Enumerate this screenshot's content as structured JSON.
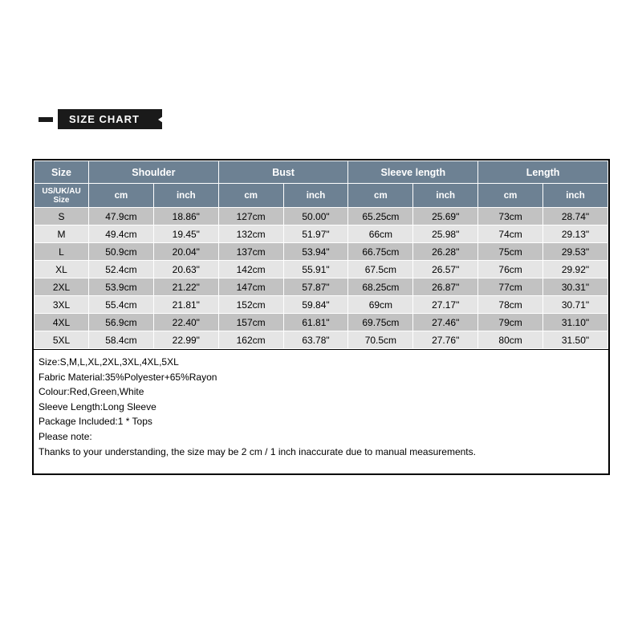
{
  "banner": {
    "label": "SIZE CHART"
  },
  "table": {
    "type": "table",
    "header_bg": "#6d8193",
    "header_fg": "#ffffff",
    "row_even_bg": "#c2c2c2",
    "row_odd_bg": "#e5e5e5",
    "border_color": "#ffffff",
    "outer_border": "#000000",
    "col_widths_pct": [
      9.5,
      11.3,
      11.3,
      11.3,
      11.3,
      11.3,
      11.3,
      11.3,
      11.3
    ],
    "top_headers": {
      "size": "Size",
      "shoulder": "Shoulder",
      "bust": "Bust",
      "sleeve": "Sleeve length",
      "length": "Length"
    },
    "sub_headers": {
      "size_sub": "US/UK/AU\nSize",
      "cm": "cm",
      "inch": "inch"
    },
    "rows": [
      {
        "size": "S",
        "shoulder_cm": "47.9cm",
        "shoulder_in": "18.86\"",
        "bust_cm": "127cm",
        "bust_in": "50.00\"",
        "sleeve_cm": "65.25cm",
        "sleeve_in": "25.69\"",
        "length_cm": "73cm",
        "length_in": "28.74\""
      },
      {
        "size": "M",
        "shoulder_cm": "49.4cm",
        "shoulder_in": "19.45\"",
        "bust_cm": "132cm",
        "bust_in": "51.97\"",
        "sleeve_cm": "66cm",
        "sleeve_in": "25.98\"",
        "length_cm": "74cm",
        "length_in": "29.13\""
      },
      {
        "size": "L",
        "shoulder_cm": "50.9cm",
        "shoulder_in": "20.04\"",
        "bust_cm": "137cm",
        "bust_in": "53.94\"",
        "sleeve_cm": "66.75cm",
        "sleeve_in": "26.28\"",
        "length_cm": "75cm",
        "length_in": "29.53\""
      },
      {
        "size": "XL",
        "shoulder_cm": "52.4cm",
        "shoulder_in": "20.63\"",
        "bust_cm": "142cm",
        "bust_in": "55.91\"",
        "sleeve_cm": "67.5cm",
        "sleeve_in": "26.57\"",
        "length_cm": "76cm",
        "length_in": "29.92\""
      },
      {
        "size": "2XL",
        "shoulder_cm": "53.9cm",
        "shoulder_in": "21.22\"",
        "bust_cm": "147cm",
        "bust_in": "57.87\"",
        "sleeve_cm": "68.25cm",
        "sleeve_in": "26.87\"",
        "length_cm": "77cm",
        "length_in": "30.31\""
      },
      {
        "size": "3XL",
        "shoulder_cm": "55.4cm",
        "shoulder_in": "21.81\"",
        "bust_cm": "152cm",
        "bust_in": "59.84\"",
        "sleeve_cm": "69cm",
        "sleeve_in": "27.17\"",
        "length_cm": "78cm",
        "length_in": "30.71\""
      },
      {
        "size": "4XL",
        "shoulder_cm": "56.9cm",
        "shoulder_in": "22.40\"",
        "bust_cm": "157cm",
        "bust_in": "61.81\"",
        "sleeve_cm": "69.75cm",
        "sleeve_in": "27.46\"",
        "length_cm": "79cm",
        "length_in": "31.10\""
      },
      {
        "size": "5XL",
        "shoulder_cm": "58.4cm",
        "shoulder_in": "22.99\"",
        "bust_cm": "162cm",
        "bust_in": "63.78\"",
        "sleeve_cm": "70.5cm",
        "sleeve_in": "27.76\"",
        "length_cm": "80cm",
        "length_in": "31.50\""
      }
    ]
  },
  "info": {
    "lines": [
      "Size:S,M,L,XL,2XL,3XL,4XL,5XL",
      "Fabric Material:35%Polyester+65%Rayon",
      "Colour:Red,Green,White",
      "Sleeve Length:Long Sleeve",
      "Package Included:1 * Tops",
      "Please note:",
      "Thanks to your understanding, the size may be 2 cm / 1 inch inaccurate due to manual measurements."
    ]
  }
}
